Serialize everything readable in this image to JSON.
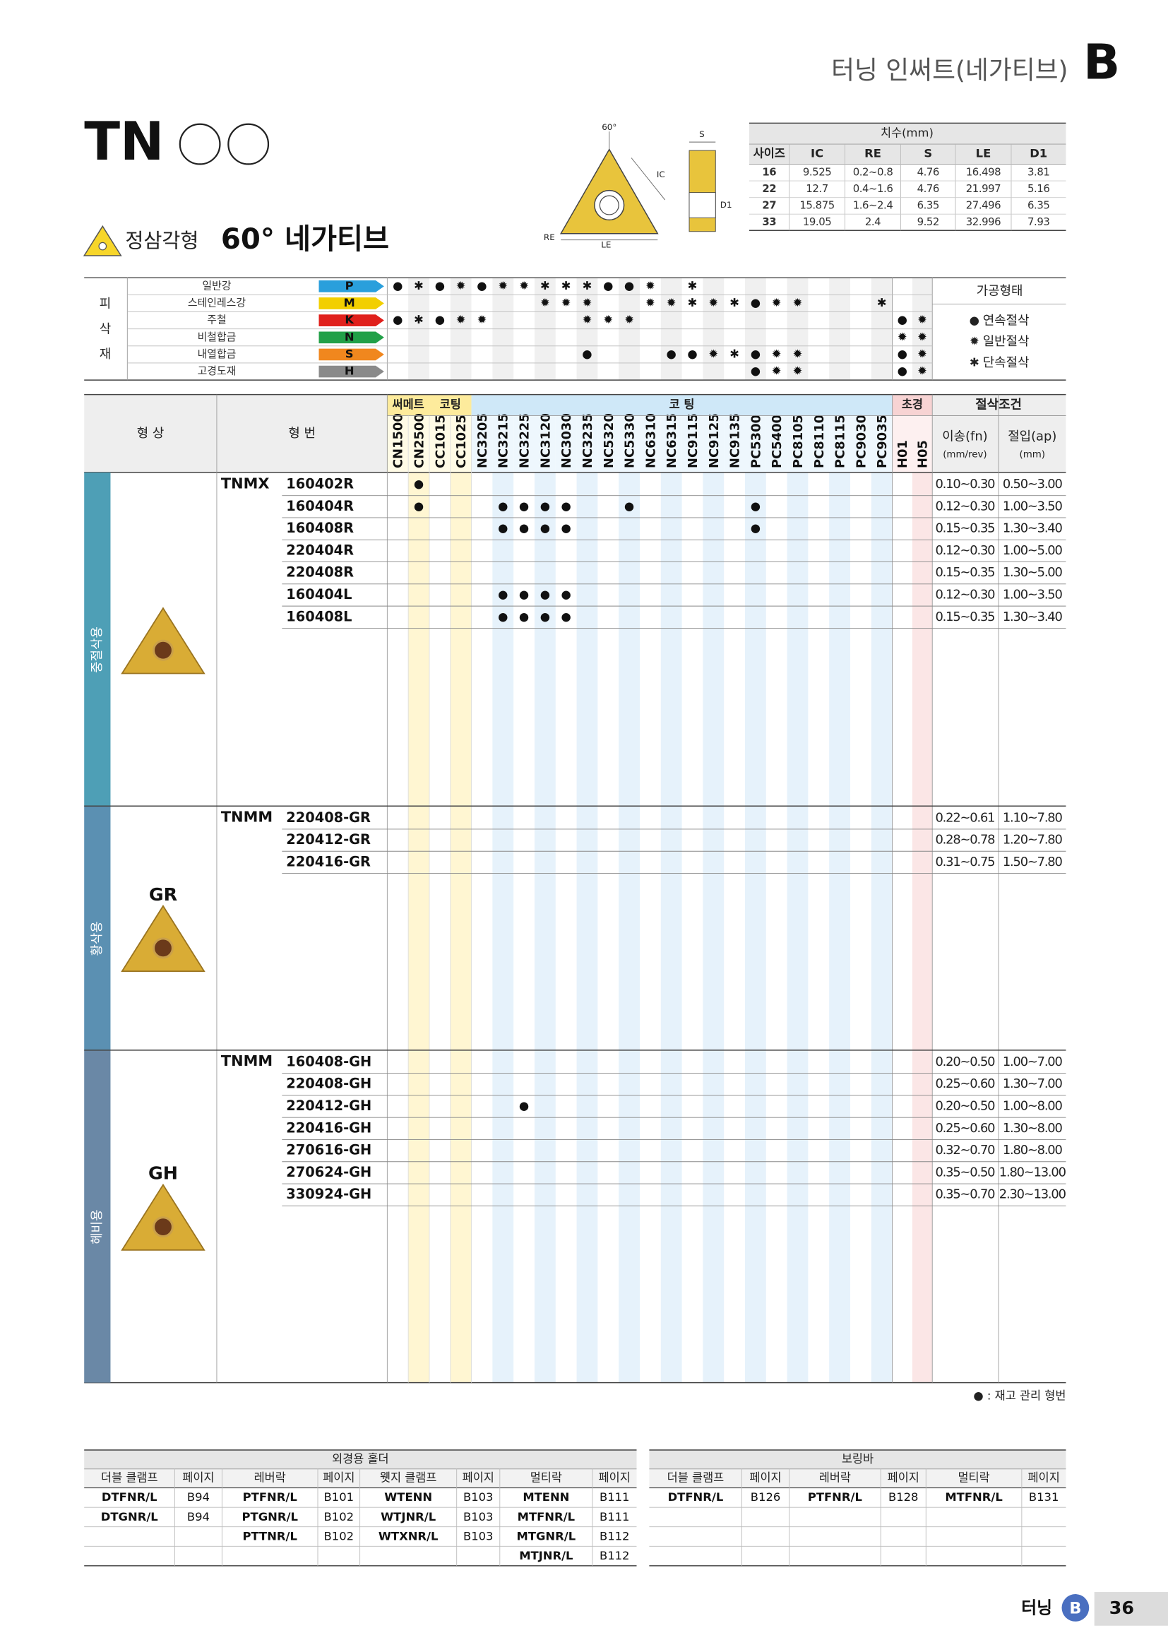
{
  "header": {
    "title": "터닝 인써트(네가티브)",
    "section": "B"
  },
  "product": {
    "code": "TN",
    "shape": "정삼각형",
    "subtitle": "60° 네가티브"
  },
  "diagram": {
    "angle": "60°",
    "s": "S",
    "ic": "IC",
    "d1": "D1",
    "re": "RE",
    "le": "LE"
  },
  "dimensions": {
    "title": "치수(mm)",
    "columns": [
      "사이즈",
      "IC",
      "RE",
      "S",
      "LE",
      "D1"
    ],
    "rows": [
      [
        "16",
        "9.525",
        "0.2~0.8",
        "4.76",
        "16.498",
        "3.81"
      ],
      [
        "22",
        "12.7",
        "0.4~1.6",
        "4.76",
        "21.997",
        "5.16"
      ],
      [
        "27",
        "15.875",
        "1.6~2.4",
        "6.35",
        "27.496",
        "6.35"
      ],
      [
        "33",
        "19.05",
        "2.4",
        "9.52",
        "32.996",
        "7.93"
      ]
    ]
  },
  "materials": {
    "side_label": [
      "피",
      "삭",
      "재"
    ],
    "rows": [
      {
        "name": "일반강",
        "code": "P",
        "color": "#2a9fdc",
        "marks": {
          "CN1500": "●",
          "CN2500": "✱",
          "CC1015": "●",
          "CC1025": "✹",
          "NC3205": "●",
          "NC3215": "✹",
          "NC3225": "✹",
          "NC3120": "✱",
          "NC3030": "✱",
          "NC3235": "✱",
          "NC5320": "●",
          "NC5330": "●",
          "NC6310": "✹",
          "NC9115": "✱"
        }
      },
      {
        "name": "스테인레스강",
        "code": "M",
        "color": "#f2cf00",
        "marks": {
          "NC3120": "✹",
          "NC3030": "✹",
          "NC3235": "✹",
          "NC6310": "✹",
          "NC6315": "✹",
          "NC9115": "✱",
          "NC9125": "✹",
          "NC9135": "✱",
          "PC5300": "●",
          "PC5400": "✹",
          "PC8105": "✹",
          "PC9035": "✱"
        }
      },
      {
        "name": "주철",
        "code": "K",
        "color": "#e0201c",
        "marks": {
          "CN1500": "●",
          "CN2500": "✱",
          "CC1015": "●",
          "CC1025": "✹",
          "NC3205": "✹",
          "NC3235": "✹",
          "NC5320": "✹",
          "NC5330": "✹",
          "H01": "●",
          "H05": "✹"
        }
      },
      {
        "name": "비철합금",
        "code": "N",
        "color": "#22a048",
        "marks": {
          "H01": "✹",
          "H05": "✹"
        }
      },
      {
        "name": "내열합금",
        "code": "S",
        "color": "#f0871e",
        "marks": {
          "NC3235": "●",
          "NC6315": "●",
          "NC9115": "●",
          "NC9125": "✹",
          "NC9135": "✱",
          "PC5300": "●",
          "PC5400": "✹",
          "PC8105": "✹",
          "H01": "●",
          "H05": "✹"
        }
      },
      {
        "name": "고경도재",
        "code": "H",
        "color": "#8a8a8a",
        "marks": {
          "PC5300": "●",
          "PC5400": "✹",
          "PC8105": "✹",
          "H01": "●",
          "H05": "✹"
        }
      }
    ],
    "legend": {
      "title": "가공형태",
      "items": [
        {
          "symbol": "●",
          "label": "연속절삭"
        },
        {
          "symbol": "✹",
          "label": "일반절삭"
        },
        {
          "symbol": "✱",
          "label": "단속절삭"
        }
      ]
    }
  },
  "grades": {
    "shape_header": "형 상",
    "code_header": "형 번",
    "groups": [
      {
        "label": "써메트",
        "columns": [
          "CN1500",
          "CN2500"
        ]
      },
      {
        "label": "코팅",
        "columns": [
          "CC1015",
          "CC1025"
        ]
      },
      {
        "label": "코 팅",
        "columns": [
          "NC3205",
          "NC3215",
          "NC3225",
          "NC3120",
          "NC3030",
          "NC3235",
          "NC5320",
          "NC5330",
          "NC6310",
          "NC6315",
          "NC9115",
          "NC9125",
          "NC9135",
          "PC5300",
          "PC5400",
          "PC8105",
          "PC8110",
          "PC8115",
          "PC9030",
          "PC9035"
        ]
      },
      {
        "label": "초경",
        "columns": [
          "H01",
          "H05"
        ]
      }
    ],
    "conditions": {
      "title": "절삭조건",
      "feed": "이송(fn)",
      "feed_unit": "(mm/rev)",
      "depth": "절입(ap)",
      "depth_unit": "(mm)"
    }
  },
  "inserts": [
    {
      "label": "중절삭용",
      "series": "TNMX",
      "badge": null,
      "rows": [
        {
          "code": "160402R",
          "marks": {
            "CN2500": "●"
          },
          "feed": "0.10~0.30",
          "depth": "0.50~3.00"
        },
        {
          "code": "160404R",
          "marks": {
            "CN2500": "●",
            "NC3215": "●",
            "NC3225": "●",
            "NC3120": "●",
            "NC3030": "●",
            "NC5330": "●",
            "PC5300": "●"
          },
          "feed": "0.12~0.30",
          "depth": "1.00~3.50"
        },
        {
          "code": "160408R",
          "marks": {
            "NC3215": "●",
            "NC3225": "●",
            "NC3120": "●",
            "NC3030": "●",
            "PC5300": "●"
          },
          "feed": "0.15~0.35",
          "depth": "1.30~3.40"
        },
        {
          "code": "220404R",
          "marks": {},
          "feed": "0.12~0.30",
          "depth": "1.00~5.00"
        },
        {
          "code": "220408R",
          "marks": {},
          "feed": "0.15~0.35",
          "depth": "1.30~5.00"
        },
        {
          "code": "160404L",
          "marks": {
            "NC3215": "●",
            "NC3225": "●",
            "NC3120": "●",
            "NC3030": "●"
          },
          "feed": "0.12~0.30",
          "depth": "1.00~3.50"
        },
        {
          "code": "160408L",
          "marks": {
            "NC3215": "●",
            "NC3225": "●",
            "NC3120": "●",
            "NC3030": "●"
          },
          "feed": "0.15~0.35",
          "depth": "1.30~3.40"
        }
      ]
    },
    {
      "label": "황삭용",
      "series": "TNMM",
      "badge": "GR",
      "rows": [
        {
          "code": "220408-GR",
          "marks": {},
          "feed": "0.22~0.61",
          "depth": "1.10~7.80"
        },
        {
          "code": "220412-GR",
          "marks": {},
          "feed": "0.28~0.78",
          "depth": "1.20~7.80"
        },
        {
          "code": "220416-GR",
          "marks": {},
          "feed": "0.31~0.75",
          "depth": "1.50~7.80"
        }
      ]
    },
    {
      "label": "헤비용",
      "series": "TNMM",
      "badge": "GH",
      "rows": [
        {
          "code": "160408-GH",
          "marks": {},
          "feed": "0.20~0.50",
          "depth": "1.00~7.00"
        },
        {
          "code": "220408-GH",
          "marks": {},
          "feed": "0.25~0.60",
          "depth": "1.30~7.00"
        },
        {
          "code": "220412-GH",
          "marks": {
            "NC3225": "●"
          },
          "feed": "0.20~0.50",
          "depth": "1.00~8.00"
        },
        {
          "code": "220416-GH",
          "marks": {},
          "feed": "0.25~0.60",
          "depth": "1.30~8.00"
        },
        {
          "code": "270616-GH",
          "marks": {},
          "feed": "0.32~0.70",
          "depth": "1.80~8.00"
        },
        {
          "code": "270624-GH",
          "marks": {},
          "feed": "0.35~0.50",
          "depth": "1.80~13.00"
        },
        {
          "code": "330924-GH",
          "marks": {},
          "feed": "0.35~0.70",
          "depth": "2.30~13.00"
        }
      ]
    }
  ],
  "footnote": "● : 재고 관리 형번",
  "holders": [
    {
      "title": "외경용 홀더",
      "columns": [
        "더블 클램프",
        "페이지",
        "레버락",
        "페이지",
        "웻지 클램프",
        "페이지",
        "멀티락",
        "페이지"
      ],
      "rows": [
        [
          "DTFNR/L",
          "B94",
          "PTFNR/L",
          "B101",
          "WTENN",
          "B103",
          "MTENN",
          "B111"
        ],
        [
          "DTGNR/L",
          "B94",
          "PTGNR/L",
          "B102",
          "WTJNR/L",
          "B103",
          "MTFNR/L",
          "B111"
        ],
        [
          null,
          null,
          "PTTNR/L",
          "B102",
          "WTXNR/L",
          "B103",
          "MTGNR/L",
          "B112"
        ],
        [
          null,
          null,
          null,
          null,
          null,
          null,
          "MTJNR/L",
          "B112"
        ]
      ]
    },
    {
      "title": "보링바",
      "columns": [
        "더블 클램프",
        "페이지",
        "레버락",
        "페이지",
        "멀티락",
        "페이지"
      ],
      "rows": [
        [
          "DTFNR/L",
          "B126",
          "PTFNR/L",
          "B128",
          "MTFNR/L",
          "B131"
        ],
        [
          null,
          null,
          null,
          null,
          null,
          null
        ],
        [
          null,
          null,
          null,
          null,
          null,
          null
        ],
        [
          null,
          null,
          null,
          null,
          null,
          null
        ]
      ]
    }
  ],
  "footer": {
    "section_name": "터닝",
    "section": "B",
    "page": "36"
  }
}
